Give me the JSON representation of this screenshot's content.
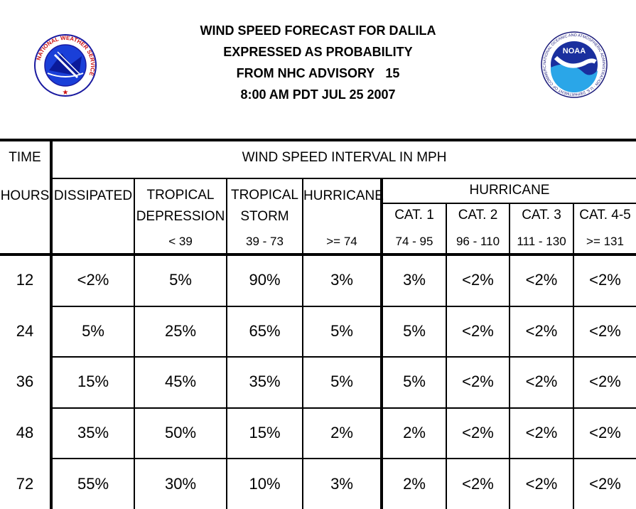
{
  "header": {
    "line1": "WIND SPEED FORECAST FOR DALILA",
    "line2": "EXPRESSED AS PROBABILITY",
    "line3_prefix": "FROM NHC ADVISORY",
    "advisory_number": "15",
    "line4": "8:00 AM PDT JUL 25 2007"
  },
  "logos": {
    "nws_text": "NATIONAL WEATHER SERVICE",
    "noaa_text": "NOAA",
    "noaa_ring_text": "NATIONAL OCEANIC AND ATMOSPHERIC ADMINISTRATION · U.S. DEPARTMENT OF COMMERCE"
  },
  "table": {
    "time_label": "TIME",
    "interval_label": "WIND SPEED INTERVAL IN MPH",
    "hours_label": "HOURS",
    "hurricane_group_label": "HURRICANE",
    "columns": [
      {
        "line1": "DISSIPATED",
        "line2": "",
        "range": ""
      },
      {
        "line1": "TROPICAL",
        "line2": "DEPRESSION",
        "range": "< 39"
      },
      {
        "line1": "TROPICAL",
        "line2": "STORM",
        "range": "39 - 73"
      },
      {
        "line1": "HURRICANE",
        "line2": "",
        "range": ">= 74"
      },
      {
        "line1": "CAT. 1",
        "line2": "",
        "range": "74 - 95"
      },
      {
        "line1": "CAT. 2",
        "line2": "",
        "range": "96 - 110"
      },
      {
        "line1": "CAT. 3",
        "line2": "",
        "range": "111 - 130"
      },
      {
        "line1": "CAT. 4-5",
        "line2": "",
        "range": ">= 131"
      }
    ],
    "rows": [
      {
        "hour": "12",
        "values": [
          "<2%",
          "5%",
          "90%",
          "3%",
          "3%",
          "<2%",
          "<2%",
          "<2%"
        ]
      },
      {
        "hour": "24",
        "values": [
          "5%",
          "25%",
          "65%",
          "5%",
          "5%",
          "<2%",
          "<2%",
          "<2%"
        ]
      },
      {
        "hour": "36",
        "values": [
          "15%",
          "45%",
          "35%",
          "5%",
          "5%",
          "<2%",
          "<2%",
          "<2%"
        ]
      },
      {
        "hour": "48",
        "values": [
          "35%",
          "50%",
          "15%",
          "2%",
          "2%",
          "<2%",
          "<2%",
          "<2%"
        ]
      },
      {
        "hour": "72",
        "values": [
          "55%",
          "30%",
          "10%",
          "3%",
          "2%",
          "<2%",
          "<2%",
          "<2%"
        ]
      }
    ]
  }
}
